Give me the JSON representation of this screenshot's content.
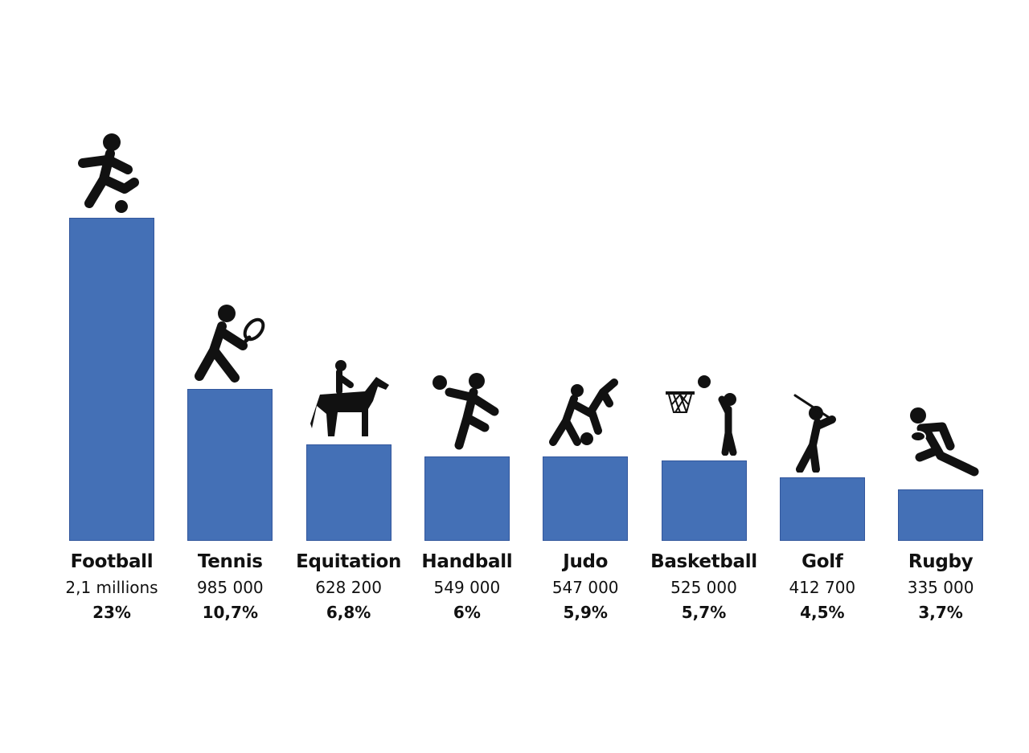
{
  "chart_data": {
    "type": "bar",
    "bar_color": "#4470b6",
    "icon_color": "#111111",
    "ylim": [
      0,
      2.1
    ],
    "grid": false,
    "legend": "none",
    "categories": [
      "Football",
      "Tennis",
      "Equitation",
      "Handball",
      "Judo",
      "Basketball",
      "Golf",
      "Rugby"
    ],
    "values": [
      2.1,
      0.985,
      0.6282,
      0.549,
      0.547,
      0.525,
      0.4127,
      0.335
    ],
    "count_labels": [
      "2,1 millions",
      "985 000",
      "628 200",
      "549 000",
      "547 000",
      "525 000",
      "412 700",
      "335 000"
    ],
    "percent_labels": [
      "23%",
      "10,7%",
      "6,8%",
      "6%",
      "5,9%",
      "5,7%",
      "4,5%",
      "3,7%"
    ],
    "icons": [
      "football-player-icon",
      "tennis-player-icon",
      "horse-rider-icon",
      "handball-player-icon",
      "judo-fighters-icon",
      "basketball-player-icon",
      "golfer-icon",
      "rugby-player-icon"
    ]
  }
}
